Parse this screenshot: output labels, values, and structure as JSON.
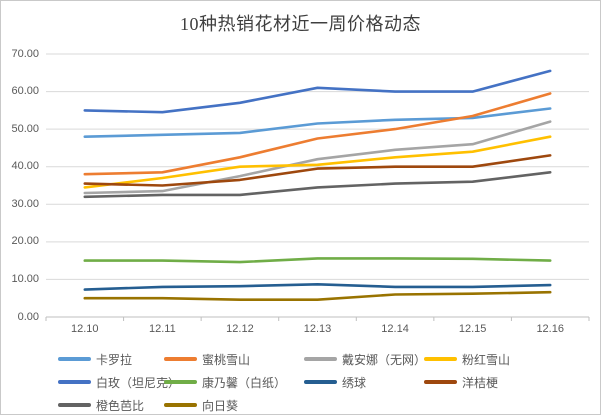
{
  "chart_data": {
    "type": "line",
    "title": "10种热销花材近一周价格动态",
    "xlabel": "",
    "ylabel": "",
    "categories": [
      "12.10",
      "12.11",
      "12.12",
      "12.13",
      "12.14",
      "12.15",
      "12.16"
    ],
    "series": [
      {
        "name": "卡罗拉",
        "color": "#5B9BD5",
        "values": [
          48.0,
          48.5,
          49.0,
          51.5,
          52.5,
          53.0,
          55.5
        ]
      },
      {
        "name": "蜜桃雪山",
        "color": "#ED7D31",
        "values": [
          38.0,
          38.5,
          42.5,
          47.5,
          50.0,
          53.5,
          59.5
        ]
      },
      {
        "name": "戴安娜（无网）",
        "color": "#A5A5A5",
        "values": [
          33.0,
          33.5,
          37.5,
          42.0,
          44.5,
          46.0,
          52.0
        ]
      },
      {
        "name": "粉红雪山",
        "color": "#FFC000",
        "values": [
          34.5,
          37.0,
          40.0,
          40.5,
          42.5,
          44.0,
          48.0
        ]
      },
      {
        "name": "白玫（坦尼克）",
        "color": "#4472C4",
        "values": [
          55.0,
          54.5,
          57.0,
          61.0,
          60.0,
          60.0,
          65.5
        ]
      },
      {
        "name": "康乃馨（白纸）",
        "color": "#70AD47",
        "values": [
          15.0,
          15.0,
          14.6,
          15.6,
          15.6,
          15.5,
          15.0
        ]
      },
      {
        "name": "绣球",
        "color": "#255E91",
        "values": [
          7.3,
          8.0,
          8.2,
          8.7,
          8.0,
          8.0,
          8.5
        ]
      },
      {
        "name": "洋桔梗",
        "color": "#9E480E",
        "values": [
          35.5,
          35.0,
          36.5,
          39.5,
          40.0,
          40.0,
          43.0
        ]
      },
      {
        "name": "橙色芭比",
        "color": "#636363",
        "values": [
          32.0,
          32.5,
          32.5,
          34.5,
          35.5,
          36.0,
          38.5
        ]
      },
      {
        "name": "向日葵",
        "color": "#997300",
        "values": [
          5.0,
          5.0,
          4.6,
          4.6,
          6.0,
          6.2,
          6.6
        ]
      }
    ],
    "ylim": [
      0,
      70
    ],
    "ytick_labels": [
      "0.00",
      "10.00",
      "20.00",
      "30.00",
      "40.00",
      "50.00",
      "60.00",
      "70.00"
    ],
    "grid": true,
    "legend_position": "bottom",
    "colors": {
      "title_text": "#3f3f3f",
      "axis_text": "#595959",
      "gridline": "#D9D9D9",
      "axis_line": "#BFBFBF",
      "chart_border": "#C9C9C9",
      "background": "#FFFFFF"
    }
  }
}
